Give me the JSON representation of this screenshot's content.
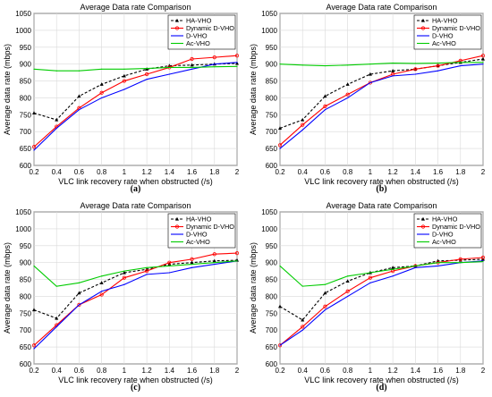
{
  "chart_data": [
    {
      "type": "line",
      "panel_label": "(a)",
      "title": "Average Data rate Comparison",
      "xlabel": "VLC link recovery rate when obstructed  (/s)",
      "ylabel": "Average data rate  (mbps)",
      "x": [
        0.2,
        0.4,
        0.6,
        0.8,
        1.0,
        1.2,
        1.4,
        1.6,
        1.8,
        2.0
      ],
      "xticks": [
        "0.2",
        "0.4",
        "0.6",
        "0.8",
        "1",
        "1.2",
        "1.4",
        "1.6",
        "1.8",
        "2"
      ],
      "yticks": [
        "600",
        "650",
        "700",
        "750",
        "800",
        "850",
        "900",
        "950",
        "1000",
        "1050"
      ],
      "xlim": [
        0.2,
        2.0
      ],
      "ylim": [
        600,
        1050
      ],
      "grid": true,
      "legend_position": "top-right",
      "series": [
        {
          "name": "HA-VHO",
          "color": "#000000",
          "dashed": true,
          "marker": "triangle",
          "values": [
            755,
            735,
            805,
            840,
            865,
            885,
            895,
            897,
            900,
            902
          ]
        },
        {
          "name": "Dynamic D-VHO",
          "color": "#ff0000",
          "dashed": false,
          "marker": "circle",
          "values": [
            655,
            715,
            770,
            815,
            850,
            870,
            890,
            915,
            920,
            925
          ]
        },
        {
          "name": "D-VHO",
          "color": "#0000ff",
          "dashed": false,
          "marker": "none",
          "values": [
            645,
            710,
            765,
            800,
            825,
            855,
            870,
            885,
            900,
            905
          ]
        },
        {
          "name": "Ac-VHO",
          "color": "#00cc00",
          "dashed": false,
          "marker": "none",
          "values": [
            885,
            880,
            880,
            885,
            885,
            887,
            890,
            890,
            892,
            893
          ]
        }
      ]
    },
    {
      "type": "line",
      "panel_label": "(b)",
      "title": "Average Data rate Comparison",
      "xlabel": "VLC link recovery rate when obstructed  (/s)",
      "ylabel": "Average data rate  (mbps)",
      "x": [
        0.2,
        0.4,
        0.6,
        0.8,
        1.0,
        1.2,
        1.4,
        1.6,
        1.8,
        2.0
      ],
      "xticks": [
        "0.2",
        "0.4",
        "0.6",
        "0.8",
        "1",
        "1.2",
        "1.4",
        "1.6",
        "1.8",
        "2"
      ],
      "yticks": [
        "600",
        "650",
        "700",
        "750",
        "800",
        "850",
        "900",
        "950",
        "1000",
        "1050"
      ],
      "xlim": [
        0.2,
        2.0
      ],
      "ylim": [
        600,
        1050
      ],
      "grid": true,
      "legend_position": "top-right",
      "series": [
        {
          "name": "HA-VHO",
          "color": "#000000",
          "dashed": true,
          "marker": "triangle",
          "values": [
            710,
            735,
            805,
            840,
            870,
            880,
            885,
            895,
            905,
            915
          ]
        },
        {
          "name": "Dynamic D-VHO",
          "color": "#ff0000",
          "dashed": false,
          "marker": "circle",
          "values": [
            660,
            720,
            775,
            810,
            845,
            870,
            885,
            895,
            910,
            925
          ]
        },
        {
          "name": "D-VHO",
          "color": "#0000ff",
          "dashed": false,
          "marker": "none",
          "values": [
            650,
            705,
            765,
            800,
            845,
            865,
            870,
            880,
            895,
            900
          ]
        },
        {
          "name": "Ac-VHO",
          "color": "#00cc00",
          "dashed": false,
          "marker": "none",
          "values": [
            900,
            897,
            895,
            897,
            900,
            903,
            902,
            903,
            905,
            905
          ]
        }
      ]
    },
    {
      "type": "line",
      "panel_label": "(c)",
      "title": "Average Data rate Comparison",
      "xlabel": "VLC link recovery rate when obstructed  (/s)",
      "ylabel": "Average data rate  (mbps)",
      "x": [
        0.2,
        0.4,
        0.6,
        0.8,
        1.0,
        1.2,
        1.4,
        1.6,
        1.8,
        2.0
      ],
      "xticks": [
        "0.2",
        "0.4",
        "0.6",
        "0.8",
        "1",
        "1.2",
        "1.4",
        "1.6",
        "1.8",
        "2"
      ],
      "yticks": [
        "600",
        "650",
        "700",
        "750",
        "800",
        "850",
        "900",
        "950",
        "1000",
        "1050"
      ],
      "xlim": [
        0.2,
        2.0
      ],
      "ylim": [
        600,
        1050
      ],
      "grid": true,
      "legend_position": "top-right",
      "series": [
        {
          "name": "HA-VHO",
          "color": "#000000",
          "dashed": true,
          "marker": "triangle",
          "values": [
            760,
            735,
            810,
            840,
            870,
            880,
            895,
            900,
            905,
            907
          ]
        },
        {
          "name": "Dynamic D-VHO",
          "color": "#ff0000",
          "dashed": false,
          "marker": "circle",
          "values": [
            655,
            715,
            775,
            805,
            855,
            875,
            900,
            910,
            925,
            928
          ]
        },
        {
          "name": "D-VHO",
          "color": "#0000ff",
          "dashed": false,
          "marker": "none",
          "values": [
            645,
            710,
            775,
            815,
            835,
            865,
            870,
            885,
            895,
            905
          ]
        },
        {
          "name": "Ac-VHO",
          "color": "#00cc00",
          "dashed": false,
          "marker": "none",
          "values": [
            890,
            830,
            840,
            860,
            875,
            885,
            890,
            895,
            900,
            905
          ]
        }
      ]
    },
    {
      "type": "line",
      "panel_label": "(d)",
      "title": "Average Data rate Comparison",
      "xlabel": "VLC link recovery rate when obstructed  (/s)",
      "ylabel": "Average data rate  (mbps)",
      "x": [
        0.2,
        0.4,
        0.6,
        0.8,
        1.0,
        1.2,
        1.4,
        1.6,
        1.8,
        2.0
      ],
      "xticks": [
        "0.2",
        "0.4",
        "0.6",
        "0.8",
        "1",
        "1.2",
        "1.4",
        "1.6",
        "1.8",
        "2"
      ],
      "yticks": [
        "600",
        "650",
        "700",
        "750",
        "800",
        "850",
        "900",
        "950",
        "1000",
        "1050"
      ],
      "xlim": [
        0.2,
        2.0
      ],
      "ylim": [
        600,
        1050
      ],
      "grid": true,
      "legend_position": "top-right",
      "series": [
        {
          "name": "HA-VHO",
          "color": "#000000",
          "dashed": true,
          "marker": "triangle",
          "values": [
            770,
            730,
            810,
            845,
            870,
            885,
            890,
            905,
            907,
            910
          ]
        },
        {
          "name": "Dynamic D-VHO",
          "color": "#ff0000",
          "dashed": false,
          "marker": "circle",
          "values": [
            655,
            710,
            770,
            815,
            855,
            875,
            890,
            900,
            910,
            915
          ]
        },
        {
          "name": "D-VHO",
          "color": "#0000ff",
          "dashed": false,
          "marker": "none",
          "values": [
            655,
            700,
            760,
            800,
            840,
            860,
            885,
            890,
            900,
            905
          ]
        },
        {
          "name": "Ac-VHO",
          "color": "#00cc00",
          "dashed": false,
          "marker": "none",
          "values": [
            890,
            830,
            835,
            860,
            870,
            880,
            890,
            900,
            900,
            903
          ]
        }
      ]
    }
  ]
}
